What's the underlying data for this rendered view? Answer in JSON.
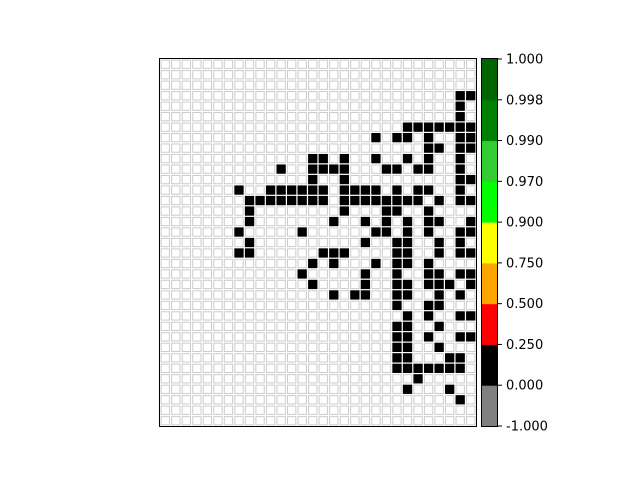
{
  "chart_data": {
    "type": "heatmap",
    "title": "",
    "xlabel": "",
    "ylabel": "",
    "grid": true,
    "axes_ticks": false,
    "n_cols": 30,
    "n_rows": 35,
    "cell_colors": {
      "empty": "#ffffff",
      "empty_border": "#cccccc",
      "filled": "#000000"
    },
    "filled_cells": [
      [
        3,
        28
      ],
      [
        3,
        29
      ],
      [
        4,
        28
      ],
      [
        5,
        28
      ],
      [
        6,
        23
      ],
      [
        6,
        24
      ],
      [
        6,
        25
      ],
      [
        6,
        26
      ],
      [
        6,
        27
      ],
      [
        6,
        28
      ],
      [
        6,
        29
      ],
      [
        7,
        20
      ],
      [
        7,
        22
      ],
      [
        7,
        23
      ],
      [
        7,
        25
      ],
      [
        7,
        28
      ],
      [
        7,
        29
      ],
      [
        8,
        25
      ],
      [
        8,
        26
      ],
      [
        8,
        28
      ],
      [
        8,
        29
      ],
      [
        9,
        14
      ],
      [
        9,
        15
      ],
      [
        9,
        17
      ],
      [
        9,
        20
      ],
      [
        9,
        23
      ],
      [
        9,
        25
      ],
      [
        9,
        28
      ],
      [
        10,
        11
      ],
      [
        10,
        14
      ],
      [
        10,
        15
      ],
      [
        10,
        16
      ],
      [
        10,
        17
      ],
      [
        10,
        21
      ],
      [
        10,
        22
      ],
      [
        10,
        24
      ],
      [
        10,
        25
      ],
      [
        10,
        28
      ],
      [
        11,
        14
      ],
      [
        11,
        17
      ],
      [
        11,
        28
      ],
      [
        11,
        29
      ],
      [
        12,
        7
      ],
      [
        12,
        10
      ],
      [
        12,
        11
      ],
      [
        12,
        12
      ],
      [
        12,
        13
      ],
      [
        12,
        14
      ],
      [
        12,
        15
      ],
      [
        12,
        17
      ],
      [
        12,
        18
      ],
      [
        12,
        19
      ],
      [
        12,
        20
      ],
      [
        12,
        22
      ],
      [
        12,
        24
      ],
      [
        12,
        25
      ],
      [
        12,
        28
      ],
      [
        13,
        8
      ],
      [
        13,
        9
      ],
      [
        13,
        10
      ],
      [
        13,
        11
      ],
      [
        13,
        12
      ],
      [
        13,
        13
      ],
      [
        13,
        14
      ],
      [
        13,
        15
      ],
      [
        13,
        17
      ],
      [
        13,
        18
      ],
      [
        13,
        19
      ],
      [
        13,
        20
      ],
      [
        13,
        21
      ],
      [
        13,
        22
      ],
      [
        13,
        23
      ],
      [
        13,
        24
      ],
      [
        13,
        26
      ],
      [
        13,
        28
      ],
      [
        13,
        29
      ],
      [
        14,
        8
      ],
      [
        14,
        17
      ],
      [
        14,
        21
      ],
      [
        14,
        22
      ],
      [
        14,
        25
      ],
      [
        15,
        8
      ],
      [
        15,
        16
      ],
      [
        15,
        19
      ],
      [
        15,
        21
      ],
      [
        15,
        23
      ],
      [
        15,
        25
      ],
      [
        15,
        26
      ],
      [
        15,
        29
      ],
      [
        16,
        7
      ],
      [
        16,
        13
      ],
      [
        16,
        20
      ],
      [
        16,
        21
      ],
      [
        16,
        23
      ],
      [
        16,
        25
      ],
      [
        16,
        28
      ],
      [
        16,
        29
      ],
      [
        17,
        8
      ],
      [
        17,
        19
      ],
      [
        17,
        22
      ],
      [
        17,
        23
      ],
      [
        17,
        26
      ],
      [
        17,
        28
      ],
      [
        18,
        7
      ],
      [
        18,
        8
      ],
      [
        18,
        15
      ],
      [
        18,
        16
      ],
      [
        18,
        17
      ],
      [
        18,
        22
      ],
      [
        18,
        23
      ],
      [
        18,
        26
      ],
      [
        18,
        28
      ],
      [
        18,
        29
      ],
      [
        19,
        14
      ],
      [
        19,
        16
      ],
      [
        19,
        20
      ],
      [
        19,
        22
      ],
      [
        19,
        23
      ],
      [
        19,
        25
      ],
      [
        20,
        13
      ],
      [
        20,
        19
      ],
      [
        20,
        22
      ],
      [
        20,
        25
      ],
      [
        20,
        26
      ],
      [
        20,
        28
      ],
      [
        20,
        29
      ],
      [
        21,
        14
      ],
      [
        21,
        19
      ],
      [
        21,
        22
      ],
      [
        21,
        23
      ],
      [
        21,
        25
      ],
      [
        21,
        26
      ],
      [
        21,
        27
      ],
      [
        21,
        29
      ],
      [
        22,
        16
      ],
      [
        22,
        18
      ],
      [
        22,
        19
      ],
      [
        22,
        22
      ],
      [
        22,
        23
      ],
      [
        22,
        26
      ],
      [
        22,
        28
      ],
      [
        23,
        22
      ],
      [
        23,
        25
      ],
      [
        23,
        26
      ],
      [
        24,
        23
      ],
      [
        24,
        25
      ],
      [
        24,
        28
      ],
      [
        24,
        29
      ],
      [
        25,
        22
      ],
      [
        25,
        23
      ],
      [
        25,
        26
      ],
      [
        26,
        22
      ],
      [
        26,
        23
      ],
      [
        26,
        25
      ],
      [
        26,
        28
      ],
      [
        26,
        29
      ],
      [
        27,
        22
      ],
      [
        27,
        23
      ],
      [
        27,
        26
      ],
      [
        28,
        22
      ],
      [
        28,
        23
      ],
      [
        28,
        27
      ],
      [
        28,
        28
      ],
      [
        29,
        22
      ],
      [
        29,
        23
      ],
      [
        29,
        24
      ],
      [
        29,
        25
      ],
      [
        29,
        26
      ],
      [
        29,
        27
      ],
      [
        29,
        28
      ],
      [
        30,
        24
      ],
      [
        31,
        23
      ],
      [
        31,
        27
      ],
      [
        32,
        28
      ]
    ],
    "colorbar": {
      "ticks": [
        "1.000",
        "0.998",
        "0.990",
        "0.970",
        "0.900",
        "0.750",
        "0.500",
        "0.250",
        "0.000",
        "-1.000"
      ],
      "bands": [
        {
          "from": -1.0,
          "to": 0.0,
          "color": "#808080"
        },
        {
          "from": 0.0,
          "to": 0.25,
          "color": "#000000"
        },
        {
          "from": 0.25,
          "to": 0.5,
          "color": "#ff0000"
        },
        {
          "from": 0.5,
          "to": 0.75,
          "color": "#ffa500"
        },
        {
          "from": 0.75,
          "to": 0.9,
          "color": "#ffff00"
        },
        {
          "from": 0.9,
          "to": 0.97,
          "color": "#00ff00"
        },
        {
          "from": 0.97,
          "to": 0.99,
          "color": "#32cd32"
        },
        {
          "from": 0.99,
          "to": 0.998,
          "color": "#008000"
        },
        {
          "from": 0.998,
          "to": 1.0,
          "color": "#006400"
        }
      ]
    }
  }
}
